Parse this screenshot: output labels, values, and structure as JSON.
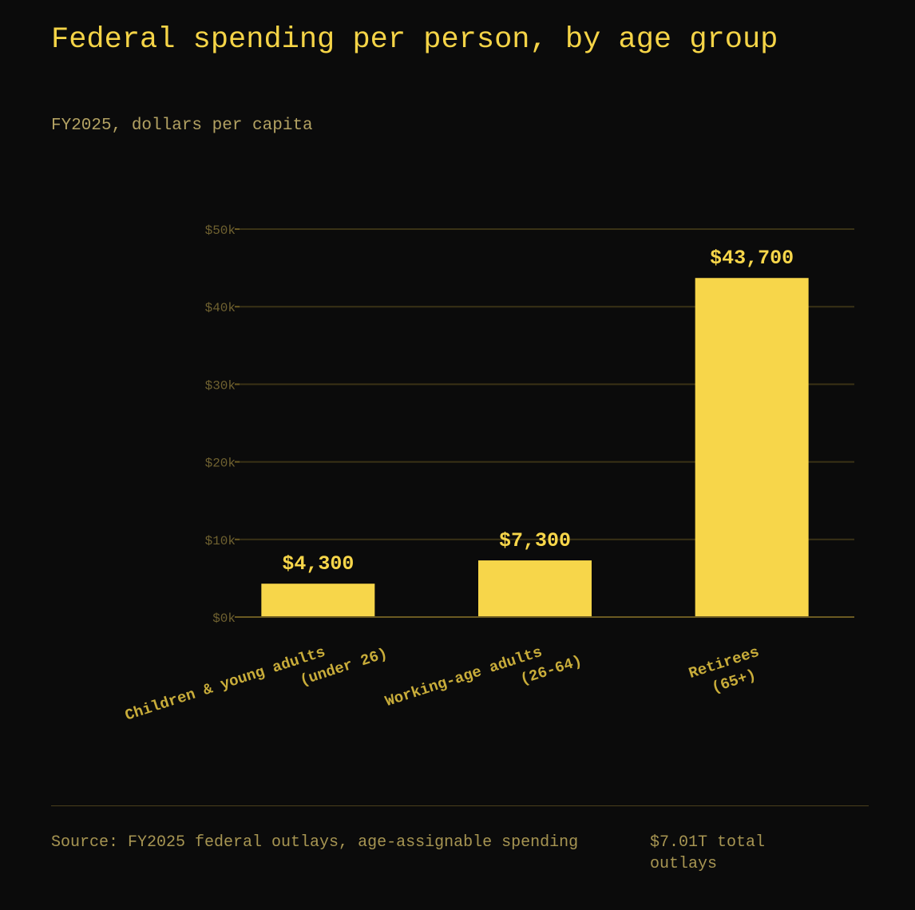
{
  "header": {
    "title": "Federal spending per person, by age group",
    "subtitle": "FY2025, dollars per capita"
  },
  "chart_data": {
    "type": "bar",
    "categories": [
      [
        "Children & young adults",
        "(under 26)"
      ],
      [
        "Working-age adults",
        "(26-64)"
      ],
      [
        "Retirees",
        "(65+)"
      ]
    ],
    "values": [
      4300,
      7300,
      43700
    ],
    "value_labels": [
      "$4,300",
      "$7,300",
      "$43,700"
    ],
    "ylim": [
      0,
      50000
    ],
    "y_ticks": [
      0,
      10000,
      20000,
      30000,
      40000,
      50000
    ],
    "y_tick_labels": [
      "$0k",
      "$10k",
      "$20k",
      "$30k",
      "$40k",
      "$50k"
    ],
    "grid": true,
    "colors": {
      "bar": "#f7d64a",
      "grid": "#3a3216",
      "axis": "#6b5a22",
      "tick_label": "#6f6130",
      "category_label": "#c9ad3a",
      "value_label": "#f7d64a"
    }
  },
  "footer": {
    "source": "Source: FY2025 federal outlays, age-assignable spending",
    "total": "$7.01T total outlays"
  }
}
